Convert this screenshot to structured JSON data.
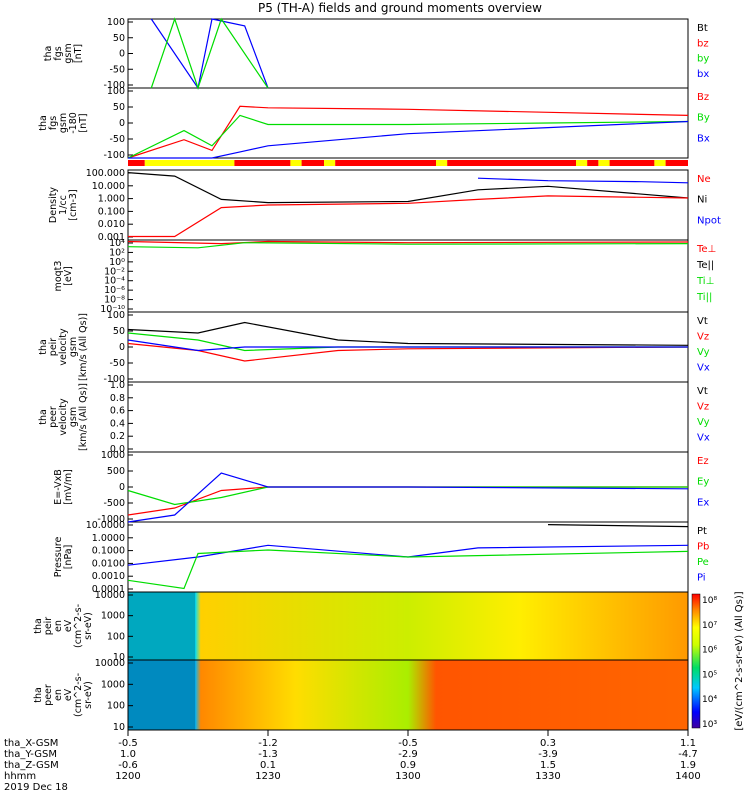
{
  "title": "P5 (TH-A) fields and ground moments overview",
  "colors": {
    "black": "#000000",
    "red": "#ff0000",
    "green": "#00dd00",
    "blue": "#0000ff",
    "yellow": "#ffff00",
    "light_green": "#00c800"
  },
  "panels": [
    {
      "id": "fgs",
      "ylabel_lines": [
        "tha",
        "fgs",
        "gsm",
        "[nT]"
      ],
      "ticks": [
        "100",
        "50",
        "0",
        "-50",
        "-100"
      ],
      "legend": [
        {
          "text": "Bt",
          "color": "#000000"
        },
        {
          "text": "bz",
          "color": "#ff0000"
        },
        {
          "text": "by",
          "color": "#00dd00"
        },
        {
          "text": "bx",
          "color": "#0000ff"
        }
      ]
    },
    {
      "id": "fgs_lp",
      "ylabel_lines": [
        "tha",
        "fgs",
        "gsm",
        "-180",
        "[nT]"
      ],
      "ticks": [
        "100",
        "50",
        "0",
        "-50",
        "-100"
      ],
      "legend": [
        {
          "text": "Bz",
          "color": "#ff0000"
        },
        {
          "text": "By",
          "color": "#00dd00"
        },
        {
          "text": "Bx",
          "color": "#0000ff"
        }
      ]
    },
    {
      "id": "density",
      "ylabel_lines": [
        "Density",
        "1/cc",
        "[cm-3]"
      ],
      "ticks": [
        "100.000",
        "10.000",
        "1.000",
        "0.100",
        "0.010",
        "0.001"
      ],
      "legend": [
        {
          "text": "Ne",
          "color": "#ff0000"
        },
        {
          "text": "Ni",
          "color": "#000000"
        },
        {
          "text": "Npot",
          "color": "#0000ff"
        }
      ]
    },
    {
      "id": "temperature",
      "ylabel_lines": [
        "moqt3",
        "[eV]"
      ],
      "ticks": [
        "10⁴",
        "10²",
        "10⁰",
        "10⁻²",
        "10⁻⁴",
        "10⁻⁶",
        "10⁻⁸",
        "10⁻¹⁰"
      ],
      "legend": [
        {
          "text": "Te⊥",
          "color": "#ff0000"
        },
        {
          "text": "Te||",
          "color": "#000000"
        },
        {
          "text": "Ti⊥",
          "color": "#00dd00"
        },
        {
          "text": "Ti||",
          "color": "#00dd00"
        }
      ]
    },
    {
      "id": "peir_velocity",
      "ylabel_lines": [
        "tha",
        "peir",
        "velocity",
        "gsm",
        "[km/s (All Qs)]"
      ],
      "ticks": [
        "100",
        "50",
        "0",
        "-50",
        "-100"
      ],
      "legend": [
        {
          "text": "Vt",
          "color": "#000000"
        },
        {
          "text": "Vz",
          "color": "#ff0000"
        },
        {
          "text": "Vy",
          "color": "#00dd00"
        },
        {
          "text": "Vx",
          "color": "#0000ff"
        }
      ]
    },
    {
      "id": "peer_velocity",
      "ylabel_lines": [
        "tha",
        "peer",
        "velocity",
        "gsm",
        "[km/s (All Qs)]"
      ],
      "ticks": [
        "1.0",
        "0.8",
        "0.6",
        "0.4",
        "0.2",
        "0.0"
      ],
      "legend": [
        {
          "text": "Vt",
          "color": "#000000"
        },
        {
          "text": "Vz",
          "color": "#ff0000"
        },
        {
          "text": "Vy",
          "color": "#00dd00"
        },
        {
          "text": "Vx",
          "color": "#0000ff"
        }
      ]
    },
    {
      "id": "efield",
      "ylabel_lines": [
        "E=-VxB",
        "[mV/m]"
      ],
      "ticks": [
        "1000",
        "500",
        "0",
        "-500",
        "-1000"
      ],
      "legend": [
        {
          "text": "Ez",
          "color": "#ff0000"
        },
        {
          "text": "Ey",
          "color": "#00dd00"
        },
        {
          "text": "Ex",
          "color": "#0000ff"
        }
      ]
    },
    {
      "id": "pressure",
      "ylabel_lines": [
        "Pressure",
        "[nPa]"
      ],
      "ticks": [
        "10.0000",
        "1.0000",
        "0.1000",
        "0.0100",
        "0.0010",
        "0.0001"
      ],
      "legend": [
        {
          "text": "Pt",
          "color": "#000000"
        },
        {
          "text": "Pb",
          "color": "#ff0000"
        },
        {
          "text": "Pe",
          "color": "#00dd00"
        },
        {
          "text": "Pi",
          "color": "#0000ff"
        }
      ]
    },
    {
      "id": "peir_spec",
      "ylabel_lines": [
        "tha",
        "peir",
        "en",
        "eV",
        "(cm^2-s-",
        "sr-eV)"
      ],
      "ticks": [
        "10000",
        "1000",
        "100",
        "10"
      ],
      "legend": []
    },
    {
      "id": "peer_spec",
      "ylabel_lines": [
        "tha",
        "peer",
        "en",
        "eV",
        "(cm^2-s-",
        "sr-eV)"
      ],
      "ticks": [
        "10000",
        "1000",
        "100",
        "10"
      ],
      "legend": []
    }
  ],
  "colorbar": {
    "label": "[eV/(cm^2-s-sr-eV) (All Qs)]",
    "ticks": [
      "10⁸",
      "10⁷",
      "10⁶",
      "10⁵",
      "10⁴",
      "10³"
    ]
  },
  "xaxis": {
    "rows": [
      {
        "label": "tha_X-GSM",
        "values": [
          "-0.5",
          "-1.2",
          "-0.5",
          "0.3",
          "1.1"
        ]
      },
      {
        "label": "tha_Y-GSM",
        "values": [
          "1.0",
          "-1.3",
          "-2.9",
          "-3.9",
          "-4.7"
        ]
      },
      {
        "label": "tha_Z-GSM",
        "values": [
          "-0.6",
          "0.1",
          "0.9",
          "1.5",
          "1.9"
        ]
      },
      {
        "label": "hhmm",
        "values": [
          "1200",
          "1230",
          "1300",
          "1330",
          "1400"
        ]
      }
    ],
    "date": "2019 Dec 18"
  },
  "chart_data": {
    "type": "line",
    "title": "P5 (TH-A) fields and ground moments overview",
    "x": [
      "1200",
      "1230",
      "1300",
      "1330",
      "1400"
    ],
    "xlabel": "hhmm",
    "date": "2019 Dec 18",
    "panels": [
      {
        "name": "tha fgs gsm [nT]",
        "ylim": [
          -100,
          100
        ],
        "series": [
          {
            "name": "bx",
            "x": [
              "1205",
              "1215",
              "1218",
              "1225",
              "1230"
            ],
            "values": [
              100,
              -100,
              100,
              80,
              -100
            ]
          },
          {
            "name": "by",
            "x": [
              "1205",
              "1210",
              "1215",
              "1220",
              "1230"
            ],
            "values": [
              -100,
              100,
              -100,
              100,
              -100
            ]
          }
        ]
      },
      {
        "name": "tha fgs gsm -180 [nT]",
        "ylim": [
          -120,
          110
        ],
        "series": [
          {
            "name": "Bz",
            "x": [
              "1200",
              "1212",
              "1218",
              "1224",
              "1230",
              "1300",
              "1330",
              "1400"
            ],
            "values": [
              -120,
              -60,
              -95,
              50,
              45,
              40,
              30,
              20
            ]
          },
          {
            "name": "By",
            "x": [
              "1200",
              "1212",
              "1218",
              "1224",
              "1230",
              "1300",
              "1330",
              "1400"
            ],
            "values": [
              -120,
              -30,
              -80,
              20,
              -10,
              -10,
              -5,
              0
            ]
          },
          {
            "name": "Bx",
            "x": [
              "1200",
              "1212",
              "1218",
              "1224",
              "1230",
              "1300",
              "1330",
              "1400"
            ],
            "values": [
              -120,
              -120,
              -120,
              -100,
              -80,
              -40,
              -20,
              0
            ]
          }
        ]
      },
      {
        "name": "Density 1/cc [cm-3]",
        "scale": "log",
        "ylim": [
          0.0005,
          500
        ],
        "series": [
          {
            "name": "Ni",
            "x": [
              "1200",
              "1210",
              "1220",
              "1230",
              "1300",
              "1315",
              "1330",
              "1400"
            ],
            "values": [
              300,
              150,
              1.5,
              0.8,
              1.0,
              10,
              20,
              2
            ]
          },
          {
            "name": "Ne",
            "x": [
              "1200",
              "1210",
              "1220",
              "1230",
              "1300",
              "1315",
              "1330",
              "1400"
            ],
            "values": [
              0.001,
              0.001,
              0.3,
              0.5,
              0.7,
              1.5,
              3,
              2
            ]
          },
          {
            "name": "Npot",
            "x": [
              "1315",
              "1330",
              "1350",
              "1400"
            ],
            "values": [
              100,
              60,
              50,
              40
            ]
          }
        ]
      },
      {
        "name": "moqt3 [eV]",
        "scale": "log",
        "ylim": [
          1e-10,
          10000.0
        ],
        "series": [
          {
            "name": "Te⊥",
            "x": [
              "1200",
              "1220",
              "1230",
              "1300",
              "1400"
            ],
            "values": [
              5000,
              2000,
              5000,
              3000,
              4000
            ]
          },
          {
            "name": "Ti||",
            "x": [
              "1200",
              "1215",
              "1225",
              "1300",
              "1400"
            ],
            "values": [
              500,
              300,
              3000,
              1500,
              2000
            ]
          }
        ]
      },
      {
        "name": "tha peir velocity gsm [km/s (All Qs)]",
        "ylim": [
          -100,
          100
        ],
        "series": [
          {
            "name": "Vt",
            "x": [
              "1200",
              "1215",
              "1225",
              "1245",
              "1300",
              "1400"
            ],
            "values": [
              50,
              40,
              70,
              20,
              10,
              5
            ]
          },
          {
            "name": "Vz",
            "x": [
              "1200",
              "1215",
              "1225",
              "1245",
              "1300",
              "1400"
            ],
            "values": [
              10,
              -10,
              -40,
              -10,
              -5,
              0
            ]
          },
          {
            "name": "Vy",
            "x": [
              "1200",
              "1215",
              "1225",
              "1245",
              "1300",
              "1400"
            ],
            "values": [
              40,
              20,
              -10,
              0,
              0,
              0
            ]
          },
          {
            "name": "Vx",
            "x": [
              "1200",
              "1215",
              "1225",
              "1245",
              "1300",
              "1400"
            ],
            "values": [
              20,
              -10,
              0,
              0,
              0,
              0
            ]
          }
        ]
      },
      {
        "name": "tha peer velocity gsm [km/s (All Qs)]",
        "ylim": [
          0,
          1
        ],
        "series": []
      },
      {
        "name": "E=-VxB [mV/m]",
        "ylim": [
          -1000,
          1000
        ],
        "series": [
          {
            "name": "Ez",
            "x": [
              "1200",
              "1210",
              "1220",
              "1230",
              "1300",
              "1400"
            ],
            "values": [
              -800,
              -600,
              -100,
              0,
              0,
              0
            ]
          },
          {
            "name": "Ey",
            "x": [
              "1200",
              "1210",
              "1220",
              "1230",
              "1300",
              "1400"
            ],
            "values": [
              -100,
              -500,
              -300,
              0,
              0,
              0
            ]
          },
          {
            "name": "Ex",
            "x": [
              "1200",
              "1210",
              "1220",
              "1230",
              "1300",
              "1400"
            ],
            "values": [
              -1000,
              -800,
              400,
              0,
              0,
              -50
            ]
          }
        ]
      },
      {
        "name": "Pressure [nPa]",
        "scale": "log",
        "ylim": [
          5e-05,
          50
        ],
        "series": [
          {
            "name": "Pt",
            "x": [
              "1330",
              "1400"
            ],
            "values": [
              30,
              20
            ]
          },
          {
            "name": "Pi",
            "x": [
              "1200",
              "1215",
              "1230",
              "1300",
              "1315",
              "1400"
            ],
            "values": [
              0.01,
              0.05,
              0.5,
              0.05,
              0.3,
              0.5
            ]
          },
          {
            "name": "Pe",
            "x": [
              "1200",
              "1212",
              "1215",
              "1230",
              "1300",
              "1400"
            ],
            "values": [
              0.0005,
              0.0001,
              0.1,
              0.2,
              0.05,
              0.15
            ]
          }
        ]
      }
    ]
  }
}
